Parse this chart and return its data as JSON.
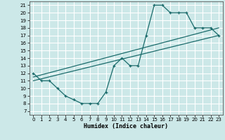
{
  "xlabel": "Humidex (Indice chaleur)",
  "bg_color": "#cce8e8",
  "grid_color": "#ffffff",
  "line_color": "#1a6b6b",
  "xlim": [
    -0.5,
    23.5
  ],
  "ylim": [
    6.5,
    21.5
  ],
  "xticks": [
    0,
    1,
    2,
    3,
    4,
    5,
    6,
    7,
    8,
    9,
    10,
    11,
    12,
    13,
    14,
    15,
    16,
    17,
    18,
    19,
    20,
    21,
    22,
    23
  ],
  "yticks": [
    7,
    8,
    9,
    10,
    11,
    12,
    13,
    14,
    15,
    16,
    17,
    18,
    19,
    20,
    21
  ],
  "curve1_x": [
    0,
    1,
    2,
    3,
    4,
    5,
    6,
    7,
    8,
    9,
    10,
    11,
    12,
    13,
    14,
    15,
    16,
    17,
    18,
    19,
    20,
    21,
    22,
    23
  ],
  "curve1_y": [
    12,
    11,
    11,
    10,
    9,
    8.5,
    8,
    8,
    8,
    9.5,
    13,
    14,
    13,
    13,
    17,
    21,
    21,
    20,
    20,
    20,
    18,
    18,
    18,
    17
  ],
  "curve2_x": [
    0,
    23
  ],
  "curve2_y": [
    11,
    17
  ],
  "curve3_x": [
    0,
    23
  ],
  "curve3_y": [
    11.5,
    18
  ],
  "marker": "+"
}
